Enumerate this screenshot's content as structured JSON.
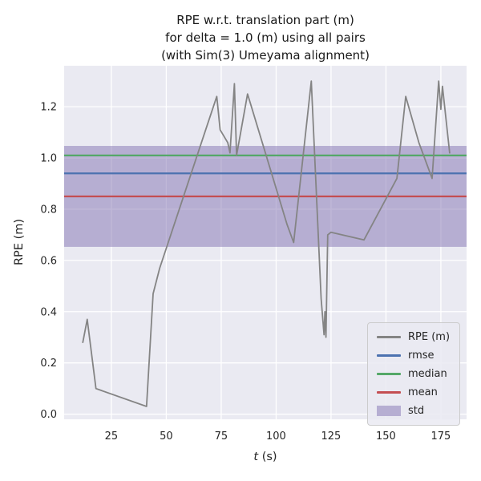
{
  "figure": {
    "bg_color": "#ffffff",
    "axes_bg_color": "#eaeaf2",
    "grid_color": "#ffffff",
    "text_color": "#262626"
  },
  "chart_data": {
    "type": "line",
    "title": "RPE w.r.t. translation part (m)\nfor delta = 1.0 (m) using all pairs\n(with Sim(3) Umeyama alignment)",
    "title_lines": [
      "RPE w.r.t. translation part (m)",
      "for delta = 1.0 (m) using all pairs",
      "(with Sim(3) Umeyama alignment)"
    ],
    "xlabel_var": "t",
    "xlabel_unit": "(s)",
    "ylabel": "RPE (m)",
    "xlim": [
      3.5,
      186.7
    ],
    "ylim": [
      -0.02,
      1.36
    ],
    "xticks": [
      25,
      50,
      75,
      100,
      125,
      150,
      175
    ],
    "yticks": [
      0.0,
      0.2,
      0.4,
      0.6,
      0.8,
      1.0,
      1.2
    ],
    "grid": true,
    "legend_position": "lower right",
    "series": [
      {
        "name": "RPE (m)",
        "color": "#848484",
        "x": [
          12,
          14,
          18,
          41,
          44,
          47,
          73,
          74.5,
          78,
          79,
          81,
          82,
          87,
          105,
          108,
          116,
          120.5,
          121.8,
          122.2,
          122.7,
          123.5,
          125,
          140,
          155,
          159,
          165,
          171,
          174,
          175,
          175.7,
          179
        ],
        "y": [
          0.28,
          0.37,
          0.1,
          0.03,
          0.47,
          0.57,
          1.24,
          1.11,
          1.06,
          1.02,
          1.29,
          1.01,
          1.25,
          0.74,
          0.67,
          1.3,
          0.45,
          0.31,
          0.4,
          0.3,
          0.7,
          0.71,
          0.68,
          0.92,
          1.24,
          1.06,
          0.92,
          1.3,
          1.19,
          1.28,
          1.02
        ]
      }
    ],
    "stat_lines": [
      {
        "label": "rmse",
        "value": 0.94,
        "color": "#4c72b0"
      },
      {
        "label": "median",
        "value": 1.01,
        "color": "#55a868"
      },
      {
        "label": "mean",
        "value": 0.85,
        "color": "#c44e52"
      }
    ],
    "std_band": {
      "label": "std",
      "center": 0.85,
      "std": 0.197,
      "color": "#8172b2",
      "alpha": 0.5
    },
    "legend": [
      {
        "label": "RPE (m)",
        "color": "#848484",
        "kind": "line"
      },
      {
        "label": "rmse",
        "color": "#4c72b0",
        "kind": "line"
      },
      {
        "label": "median",
        "color": "#55a868",
        "kind": "line"
      },
      {
        "label": "mean",
        "color": "#c44e52",
        "kind": "line"
      },
      {
        "label": "std",
        "color": "#8172b2",
        "kind": "patch"
      }
    ]
  }
}
